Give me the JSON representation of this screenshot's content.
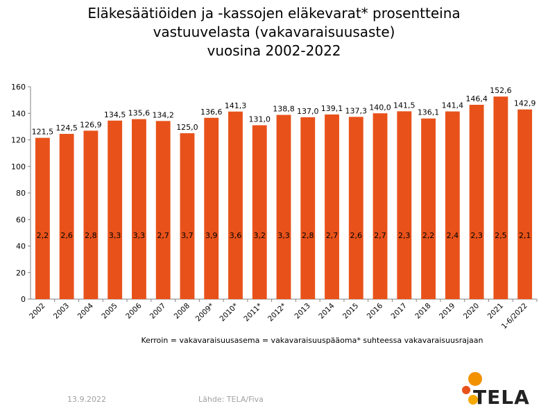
{
  "title_lines": [
    "Eläkesäätiöiden ja -kassojen eläkevarat* prosentteina",
    "vastuuvelasta (vakavaraisuusaste)",
    "vuosina 2002-2022"
  ],
  "chart_data": {
    "type": "bar",
    "categories": [
      "2002",
      "2003",
      "2004",
      "2005",
      "2006",
      "2007",
      "2008",
      "2009*",
      "2010*",
      "2011*",
      "2012*",
      "2013",
      "2014",
      "2015",
      "2016",
      "2017",
      "2018",
      "2019",
      "2020",
      "2021",
      "1-6/2022"
    ],
    "values": [
      121.5,
      124.5,
      126.9,
      134.5,
      135.6,
      134.2,
      125.0,
      136.6,
      141.3,
      131.0,
      138.8,
      137.0,
      139.1,
      137.3,
      140.0,
      141.5,
      136.1,
      141.4,
      146.4,
      152.6,
      142.9
    ],
    "value_labels": [
      "121,5",
      "124,5",
      "126,9",
      "134,5",
      "135,6",
      "134,2",
      "125,0",
      "136,6",
      "141,3",
      "131,0",
      "138,8",
      "137,0",
      "139,1",
      "137,3",
      "140,0",
      "141,5",
      "136,1",
      "141,4",
      "146,4",
      "152,6",
      "142,9"
    ],
    "kerroin_labels": [
      "2,2",
      "2,6",
      "2,8",
      "3,3",
      "3,3",
      "2,7",
      "3,7",
      "3,9",
      "3,6",
      "3,2",
      "3,3",
      "2,8",
      "2,7",
      "2,6",
      "2,7",
      "2,3",
      "2,2",
      "2,4",
      "2,3",
      "2,5",
      "2,1"
    ],
    "y_ticks": [
      "0",
      "20",
      "40",
      "60",
      "80",
      "100",
      "120",
      "140",
      "160"
    ],
    "ylim": [
      0,
      160
    ],
    "grid": false,
    "bar_color": "#e8521a"
  },
  "note": "Kerroin = vakavaraisuusasema = vakavaraisuuspääoma* suhteessa vakavaraisuusrajaan",
  "footer": {
    "date": "13.9.2022",
    "source": "Lähde: TELA/Fiva",
    "logo_text": "TELA"
  },
  "colors": {
    "logo_orange": "#f39200",
    "logo_dark": "#e8521a"
  }
}
